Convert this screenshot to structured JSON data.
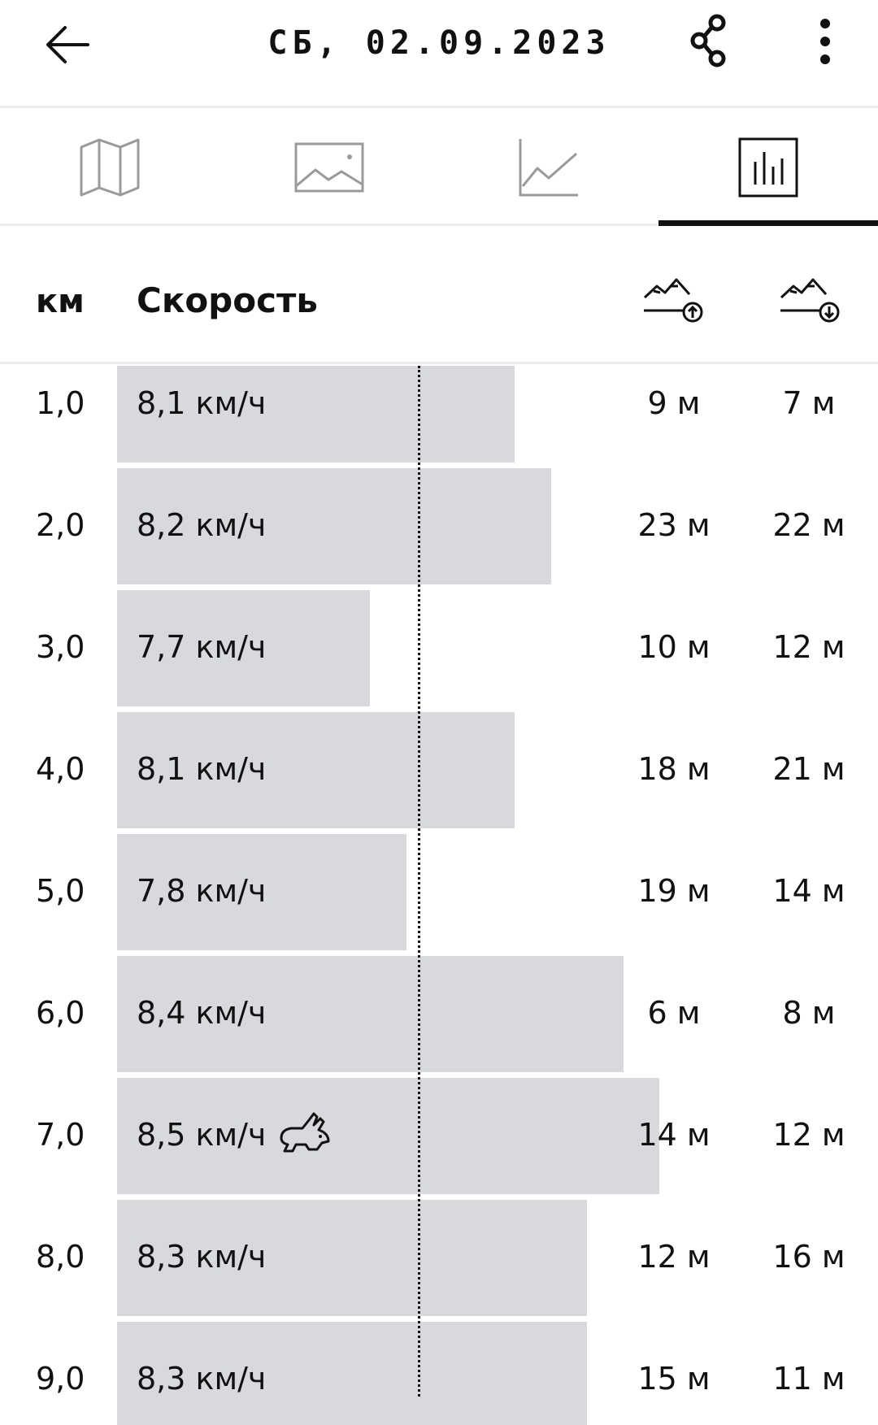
{
  "header": {
    "title": "СБ, 02.09.2023",
    "back_icon": "arrow-left-icon",
    "share_icon": "share-icon",
    "more_icon": "more-vertical-icon"
  },
  "tabs": [
    {
      "icon": "map-icon",
      "active": false
    },
    {
      "icon": "photo-icon",
      "active": false
    },
    {
      "icon": "line-chart-icon",
      "active": false
    },
    {
      "icon": "bar-chart-icon",
      "active": true
    }
  ],
  "columns": {
    "km": "км",
    "speed": "Скорость",
    "ascent_icon": "mountain-ascent-icon",
    "descent_icon": "mountain-descent-icon"
  },
  "chart_data": {
    "type": "bar",
    "categories": [
      "1,0",
      "2,0",
      "3,0",
      "4,0",
      "5,0",
      "6,0",
      "7,0",
      "8,0",
      "9,0"
    ],
    "series": [
      {
        "name": "Скорость",
        "values": [
          8.1,
          8.2,
          7.7,
          8.1,
          7.8,
          8.4,
          8.5,
          8.3,
          8.3
        ]
      }
    ],
    "average_line": 7.8,
    "ylim": [
      7.0,
      8.7
    ]
  },
  "splits": [
    {
      "km": "1,0",
      "speed": "8,1 км/ч",
      "ascent": "9 м",
      "descent": "7 м",
      "fastest": false
    },
    {
      "km": "2,0",
      "speed": "8,2 км/ч",
      "ascent": "23 м",
      "descent": "22 м",
      "fastest": false
    },
    {
      "km": "3,0",
      "speed": "7,7 км/ч",
      "ascent": "10 м",
      "descent": "12 м",
      "fastest": false
    },
    {
      "km": "4,0",
      "speed": "8,1 км/ч",
      "ascent": "18 м",
      "descent": "21 м",
      "fastest": false
    },
    {
      "km": "5,0",
      "speed": "7,8 км/ч",
      "ascent": "19 м",
      "descent": "14 м",
      "fastest": false
    },
    {
      "km": "6,0",
      "speed": "8,4 км/ч",
      "ascent": "6 м",
      "descent": "8 м",
      "fastest": false
    },
    {
      "km": "7,0",
      "speed": "8,5 км/ч",
      "ascent": "14 м",
      "descent": "12 м",
      "fastest": true
    },
    {
      "km": "8,0",
      "speed": "8,3 км/ч",
      "ascent": "12 м",
      "descent": "16 м",
      "fastest": false
    },
    {
      "km": "9,0",
      "speed": "8,3 км/ч",
      "ascent": "15 м",
      "descent": "11 м",
      "fastest": false
    }
  ],
  "fastest_icon": "rabbit-icon",
  "colors": {
    "bar": "#d7d9dc",
    "text": "#111111",
    "divider": "#eeeeee"
  }
}
